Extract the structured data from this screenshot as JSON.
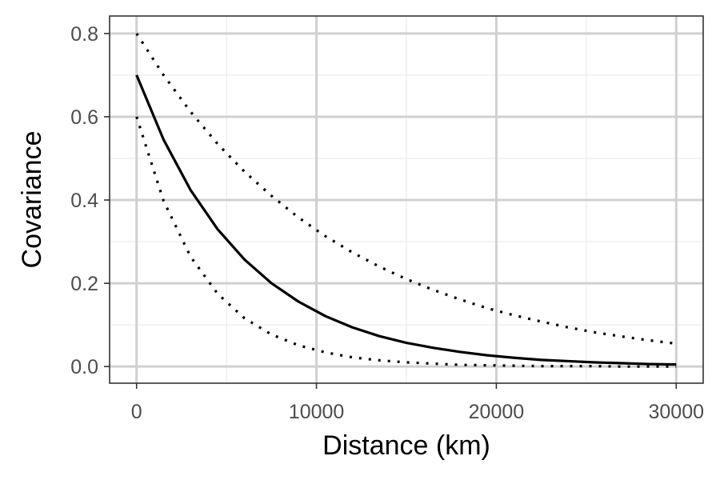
{
  "chart_data": {
    "type": "line",
    "title": "",
    "xlabel": "Distance (km)",
    "ylabel": "Covariance",
    "xlim": [
      -1500,
      31500
    ],
    "ylim": [
      -0.04,
      0.842
    ],
    "x_ticks": [
      0,
      10000,
      20000,
      30000
    ],
    "x_tick_labels": [
      "0",
      "10000",
      "20000",
      "30000"
    ],
    "y_ticks": [
      0.0,
      0.2,
      0.4,
      0.6,
      0.8
    ],
    "y_tick_labels": [
      "0.0",
      "0.2",
      "0.4",
      "0.6",
      "0.8"
    ],
    "grid": true,
    "legend": "none",
    "x": [
      0,
      1500,
      3000,
      4500,
      6000,
      7500,
      9000,
      10500,
      12000,
      13500,
      15000,
      16500,
      18000,
      19500,
      21000,
      22500,
      24000,
      25500,
      27000,
      28500,
      30000
    ],
    "series": [
      {
        "style": "dotted",
        "color": "#000000",
        "values": [
          0.8,
          0.7,
          0.612,
          0.535,
          0.468,
          0.41,
          0.358,
          0.313,
          0.274,
          0.24,
          0.21,
          0.184,
          0.161,
          0.14,
          0.123,
          0.108,
          0.094,
          0.082,
          0.072,
          0.063,
          0.055
        ]
      },
      {
        "style": "solid",
        "color": "#000000",
        "values": [
          0.7,
          0.545,
          0.424,
          0.33,
          0.257,
          0.2,
          0.156,
          0.121,
          0.094,
          0.073,
          0.057,
          0.045,
          0.035,
          0.027,
          0.021,
          0.016,
          0.013,
          0.01,
          0.008,
          0.006,
          0.005
        ]
      },
      {
        "style": "dotted",
        "color": "#000000",
        "values": [
          0.6,
          0.398,
          0.264,
          0.175,
          0.116,
          0.077,
          0.051,
          0.034,
          0.022,
          0.015,
          0.01,
          0.007,
          0.004,
          0.003,
          0.002,
          0.001,
          0.001,
          0.001,
          0.0,
          0.0,
          0.0
        ]
      }
    ]
  }
}
